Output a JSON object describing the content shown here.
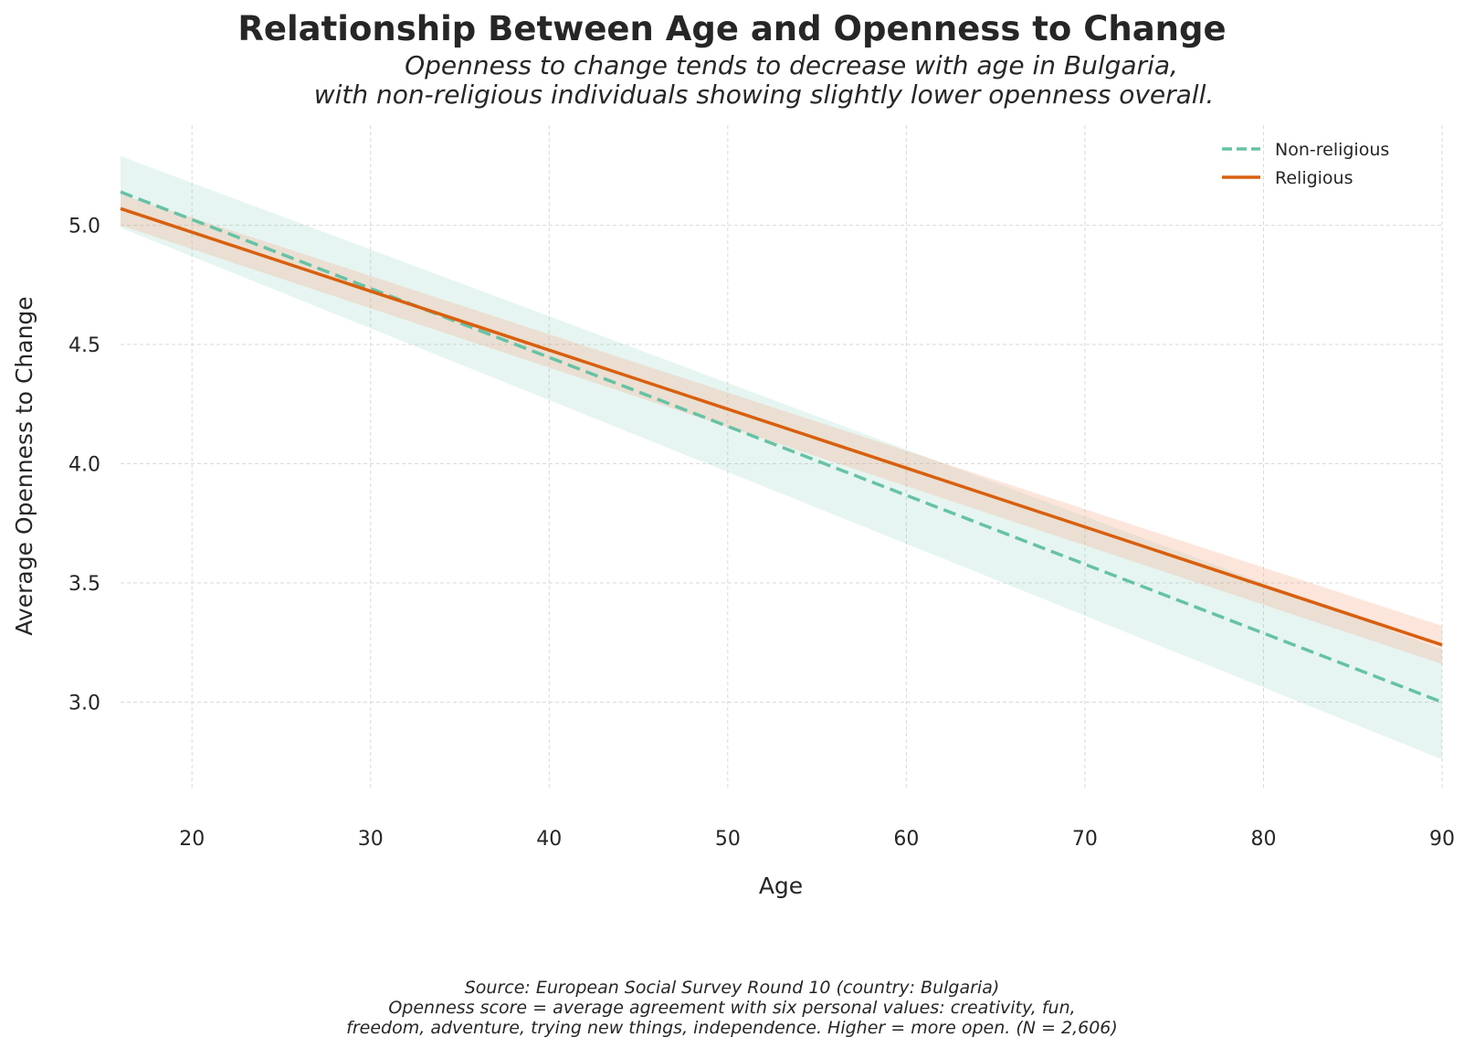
{
  "title": "Relationship Between Age and Openness to Change",
  "subtitle_lines": [
    "Openness to change tends to decrease with age in Bulgaria,",
    "with non-religious individuals showing slightly lower openness overall."
  ],
  "footer_lines": [
    "Source: European Social Survey Round 10 (country: Bulgaria)",
    "Openness score = average agreement with six personal values: creativity, fun,",
    "freedom, adventure, trying new things, independence. Higher = more open. (N = 2,606)"
  ],
  "chart_data": {
    "type": "line",
    "title": "Relationship Between Age and Openness to Change",
    "xlabel": "Age",
    "ylabel": "Average Openness to Change",
    "xlim": [
      16,
      90
    ],
    "ylim": [
      2.63,
      5.42
    ],
    "xticks": [
      20,
      30,
      40,
      50,
      60,
      70,
      80,
      90
    ],
    "xtick_labels": [
      "20",
      "30",
      "40",
      "50",
      "60",
      "70",
      "80",
      "90"
    ],
    "yticks": [
      3.0,
      3.5,
      4.0,
      4.5,
      5.0
    ],
    "ytick_labels": [
      "3.0",
      "3.5",
      "4.0",
      "4.5",
      "5.0"
    ],
    "grid": true,
    "legend_position": "top-right",
    "series": [
      {
        "name": "Non-religious",
        "style": "dashed",
        "color": "#66c2a5",
        "band_color": "#66c2a5",
        "x": [
          16,
          90
        ],
        "y": [
          5.14,
          3.0
        ],
        "ci_low": [
          4.99,
          2.76
        ],
        "ci_high": [
          5.29,
          3.22
        ]
      },
      {
        "name": "Religious",
        "style": "solid",
        "color": "#d95f0e",
        "band_color": "#f4a582",
        "x": [
          16,
          90
        ],
        "y": [
          5.07,
          3.24
        ],
        "ci_low": [
          5.0,
          3.16
        ],
        "ci_high": [
          5.13,
          3.32
        ]
      }
    ]
  }
}
